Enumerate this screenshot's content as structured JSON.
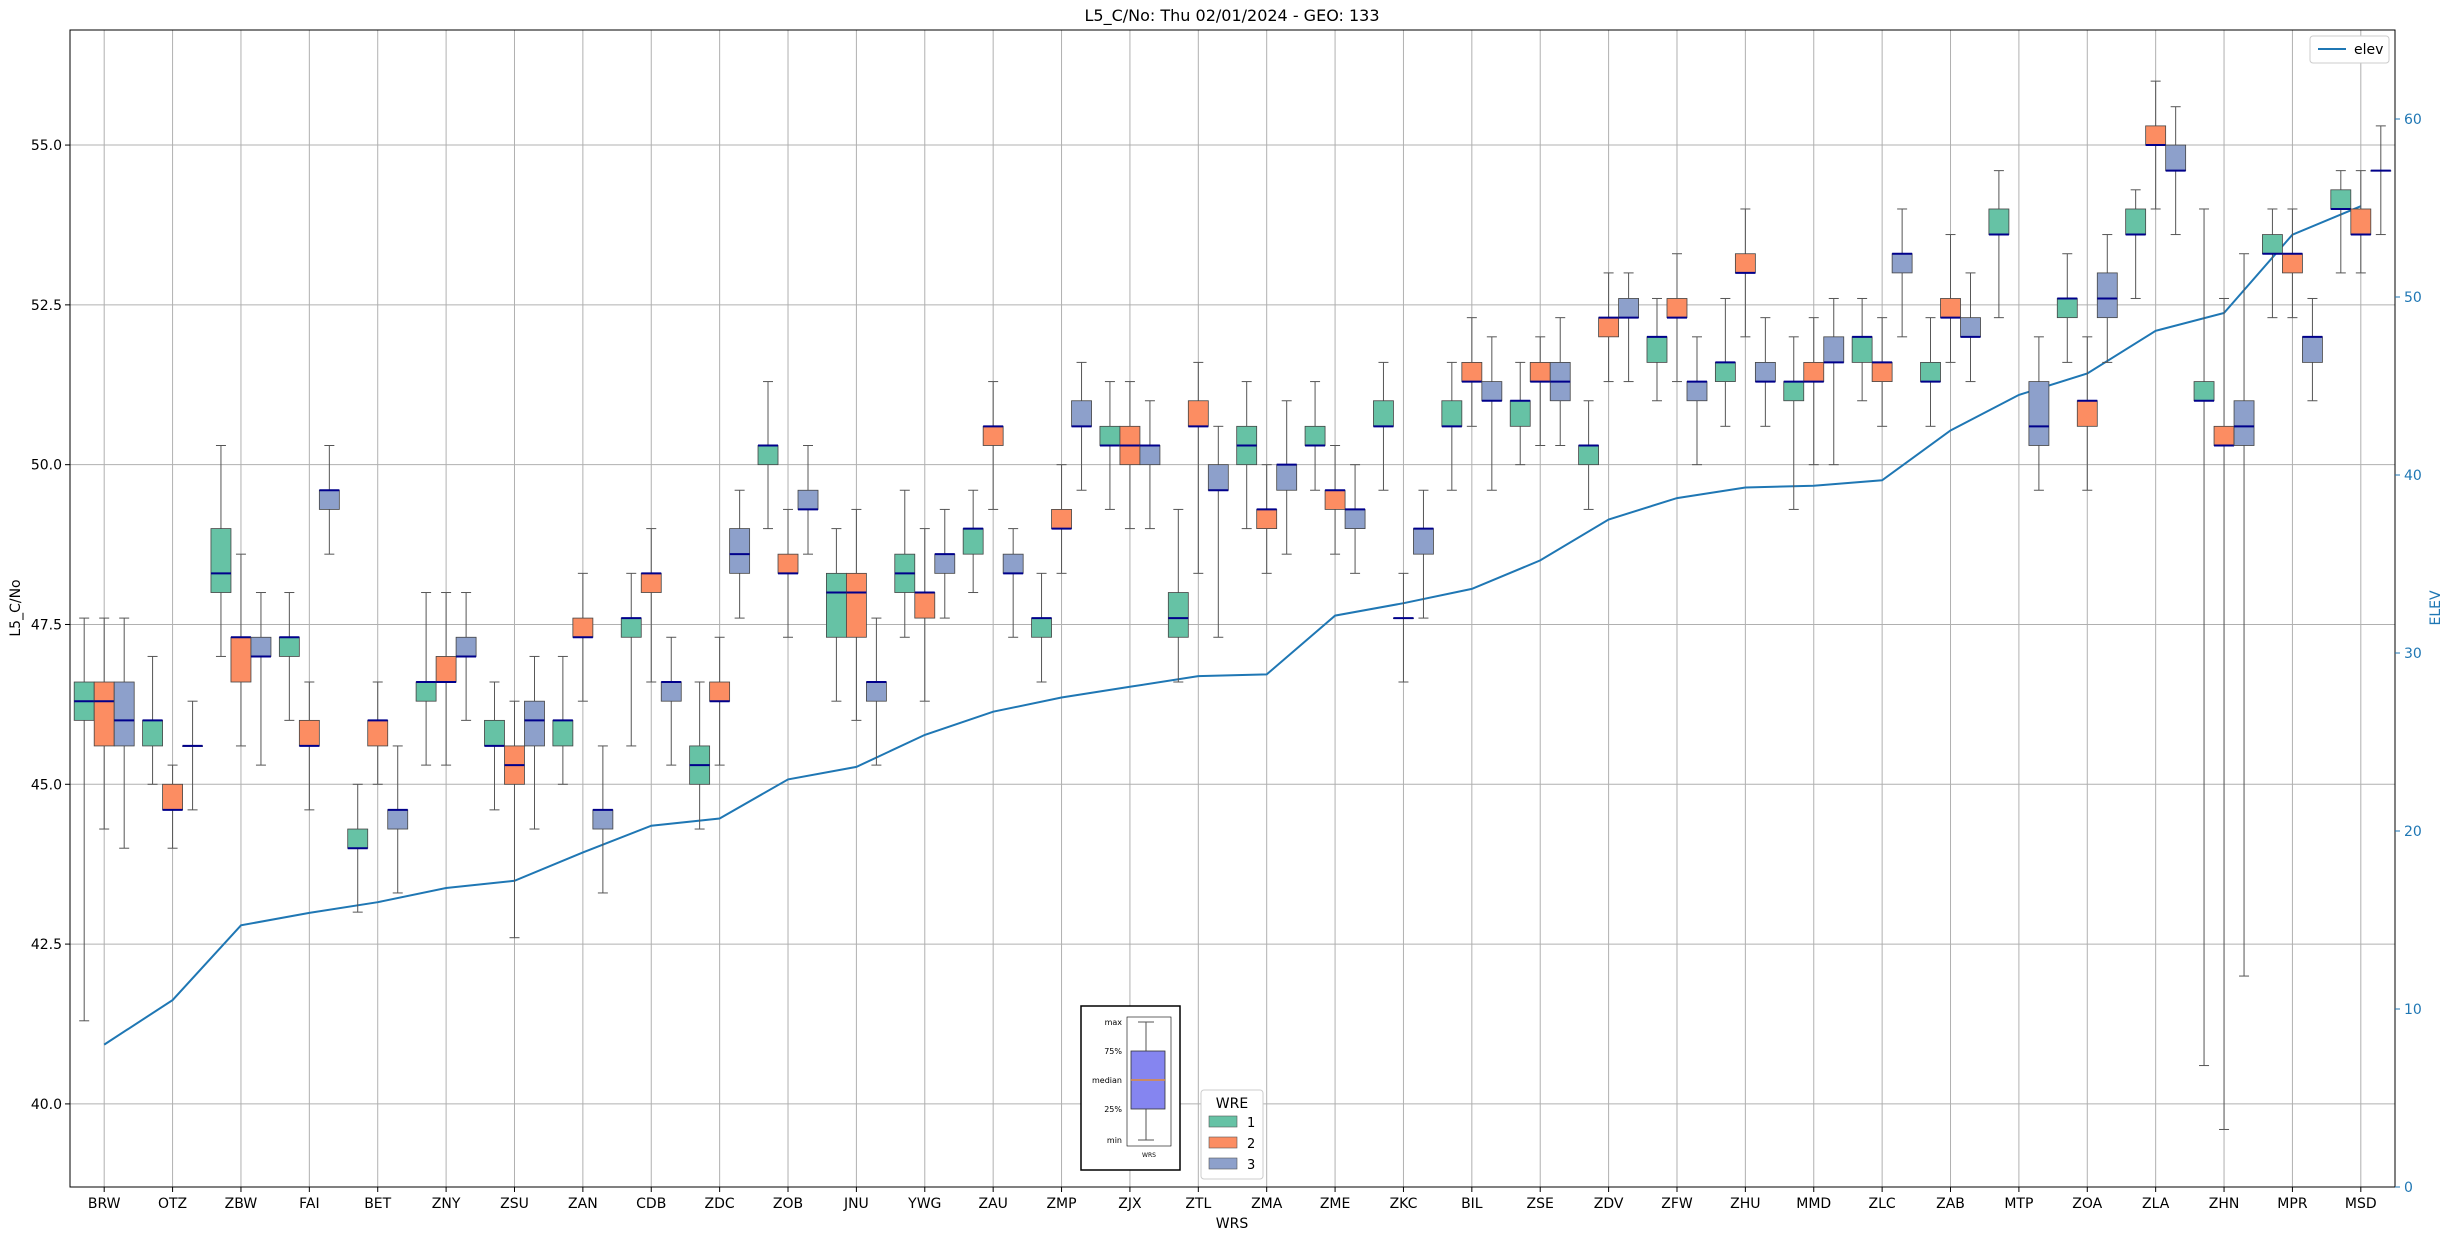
{
  "chart_data": {
    "type": "box",
    "title": "L5_C/No: Thu 02/01/2024 - GEO: 133",
    "xlabel": "WRS",
    "ylabel": "L5_C/No",
    "y2label": "ELEV",
    "ylim": [
      38.7,
      56.8
    ],
    "y2lim": [
      0,
      65
    ],
    "yticks": [
      "40.0",
      "42.5",
      "45.0",
      "47.5",
      "50.0",
      "52.5",
      "55.0"
    ],
    "y2ticks": [
      "0",
      "10",
      "20",
      "30",
      "40",
      "50",
      "60"
    ],
    "grid": true,
    "categories": [
      "BRW",
      "OTZ",
      "ZBW",
      "FAI",
      "BET",
      "ZNY",
      "ZSU",
      "ZAN",
      "CDB",
      "ZDC",
      "ZOB",
      "JNU",
      "YWG",
      "ZAU",
      "ZMP",
      "ZJX",
      "ZTL",
      "ZMA",
      "ZME",
      "ZKC",
      "BIL",
      "ZSE",
      "ZDV",
      "ZFW",
      "ZHU",
      "MMD",
      "ZLC",
      "ZAB",
      "MTP",
      "ZOA",
      "ZLA",
      "ZHN",
      "MPR",
      "MSD"
    ],
    "colors": {
      "1": "#66c2a5",
      "2": "#fc8d62",
      "3": "#8da0cb",
      "elev": "#1f77b4",
      "median": "#00008b"
    },
    "boxes": [
      {
        "cat": "BRW",
        "wre": "1",
        "min": 41.3,
        "q1": 46.0,
        "med": 46.3,
        "q3": 46.6,
        "max": 47.6
      },
      {
        "cat": "BRW",
        "wre": "2",
        "min": 44.3,
        "q1": 45.6,
        "med": 46.3,
        "q3": 46.6,
        "max": 47.6
      },
      {
        "cat": "BRW",
        "wre": "3",
        "min": 44.0,
        "q1": 45.6,
        "med": 46.0,
        "q3": 46.6,
        "max": 47.6
      },
      {
        "cat": "OTZ",
        "wre": "1",
        "min": 45.0,
        "q1": 45.6,
        "med": 46.0,
        "q3": 46.0,
        "max": 47.0
      },
      {
        "cat": "OTZ",
        "wre": "2",
        "min": 44.0,
        "q1": 44.6,
        "med": 44.6,
        "q3": 45.0,
        "max": 45.3
      },
      {
        "cat": "OTZ",
        "wre": "3",
        "min": 44.6,
        "q1": 45.6,
        "med": 45.6,
        "q3": 45.6,
        "max": 46.3
      },
      {
        "cat": "ZBW",
        "wre": "1",
        "min": 47.0,
        "q1": 48.0,
        "med": 48.3,
        "q3": 49.0,
        "max": 50.3
      },
      {
        "cat": "ZBW",
        "wre": "2",
        "min": 45.6,
        "q1": 46.6,
        "med": 47.3,
        "q3": 47.3,
        "max": 48.6
      },
      {
        "cat": "ZBW",
        "wre": "3",
        "min": 45.3,
        "q1": 47.0,
        "med": 47.0,
        "q3": 47.3,
        "max": 48.0
      },
      {
        "cat": "FAI",
        "wre": "1",
        "min": 46.0,
        "q1": 47.0,
        "med": 47.3,
        "q3": 47.3,
        "max": 48.0
      },
      {
        "cat": "FAI",
        "wre": "2",
        "min": 44.6,
        "q1": 45.6,
        "med": 45.6,
        "q3": 46.0,
        "max": 46.6
      },
      {
        "cat": "FAI",
        "wre": "3",
        "min": 48.6,
        "q1": 49.3,
        "med": 49.6,
        "q3": 49.6,
        "max": 50.3
      },
      {
        "cat": "BET",
        "wre": "1",
        "min": 43.0,
        "q1": 44.0,
        "med": 44.0,
        "q3": 44.3,
        "max": 45.0
      },
      {
        "cat": "BET",
        "wre": "2",
        "min": 45.0,
        "q1": 45.6,
        "med": 46.0,
        "q3": 46.0,
        "max": 46.6
      },
      {
        "cat": "BET",
        "wre": "3",
        "min": 43.3,
        "q1": 44.3,
        "med": 44.6,
        "q3": 44.6,
        "max": 45.6
      },
      {
        "cat": "ZNY",
        "wre": "1",
        "min": 45.3,
        "q1": 46.3,
        "med": 46.6,
        "q3": 46.6,
        "max": 48.0
      },
      {
        "cat": "ZNY",
        "wre": "2",
        "min": 45.3,
        "q1": 46.6,
        "med": 46.6,
        "q3": 47.0,
        "max": 48.0
      },
      {
        "cat": "ZNY",
        "wre": "3",
        "min": 46.0,
        "q1": 47.0,
        "med": 47.0,
        "q3": 47.3,
        "max": 48.0
      },
      {
        "cat": "ZSU",
        "wre": "1",
        "min": 44.6,
        "q1": 45.6,
        "med": 45.6,
        "q3": 46.0,
        "max": 46.6
      },
      {
        "cat": "ZSU",
        "wre": "2",
        "min": 42.6,
        "q1": 45.0,
        "med": 45.3,
        "q3": 45.6,
        "max": 46.3
      },
      {
        "cat": "ZSU",
        "wre": "3",
        "min": 44.3,
        "q1": 45.6,
        "med": 46.0,
        "q3": 46.3,
        "max": 47.0
      },
      {
        "cat": "ZAN",
        "wre": "1",
        "min": 45.0,
        "q1": 45.6,
        "med": 46.0,
        "q3": 46.0,
        "max": 47.0
      },
      {
        "cat": "ZAN",
        "wre": "2",
        "min": 46.3,
        "q1": 47.3,
        "med": 47.3,
        "q3": 47.6,
        "max": 48.3
      },
      {
        "cat": "ZAN",
        "wre": "3",
        "min": 43.3,
        "q1": 44.3,
        "med": 44.6,
        "q3": 44.6,
        "max": 45.6
      },
      {
        "cat": "CDB",
        "wre": "1",
        "min": 45.6,
        "q1": 47.3,
        "med": 47.6,
        "q3": 47.6,
        "max": 48.3
      },
      {
        "cat": "CDB",
        "wre": "2",
        "min": 46.6,
        "q1": 48.0,
        "med": 48.3,
        "q3": 48.3,
        "max": 49.0
      },
      {
        "cat": "CDB",
        "wre": "3",
        "min": 45.3,
        "q1": 46.3,
        "med": 46.6,
        "q3": 46.6,
        "max": 47.3
      },
      {
        "cat": "ZDC",
        "wre": "1",
        "min": 44.3,
        "q1": 45.0,
        "med": 45.3,
        "q3": 45.6,
        "max": 46.6
      },
      {
        "cat": "ZDC",
        "wre": "2",
        "min": 45.3,
        "q1": 46.3,
        "med": 46.3,
        "q3": 46.6,
        "max": 47.3
      },
      {
        "cat": "ZDC",
        "wre": "3",
        "min": 47.6,
        "q1": 48.3,
        "med": 48.6,
        "q3": 49.0,
        "max": 49.6
      },
      {
        "cat": "ZOB",
        "wre": "1",
        "min": 49.0,
        "q1": 50.0,
        "med": 50.3,
        "q3": 50.3,
        "max": 51.3
      },
      {
        "cat": "ZOB",
        "wre": "2",
        "min": 47.3,
        "q1": 48.3,
        "med": 48.3,
        "q3": 48.6,
        "max": 49.3
      },
      {
        "cat": "ZOB",
        "wre": "3",
        "min": 48.6,
        "q1": 49.3,
        "med": 49.3,
        "q3": 49.6,
        "max": 50.3
      },
      {
        "cat": "JNU",
        "wre": "1",
        "min": 46.3,
        "q1": 47.3,
        "med": 48.0,
        "q3": 48.3,
        "max": 49.0
      },
      {
        "cat": "JNU",
        "wre": "2",
        "min": 46.0,
        "q1": 47.3,
        "med": 48.0,
        "q3": 48.3,
        "max": 49.3
      },
      {
        "cat": "JNU",
        "wre": "3",
        "min": 45.3,
        "q1": 46.3,
        "med": 46.6,
        "q3": 46.6,
        "max": 47.6
      },
      {
        "cat": "YWG",
        "wre": "1",
        "min": 47.3,
        "q1": 48.0,
        "med": 48.3,
        "q3": 48.6,
        "max": 49.6
      },
      {
        "cat": "YWG",
        "wre": "2",
        "min": 46.3,
        "q1": 47.6,
        "med": 48.0,
        "q3": 48.0,
        "max": 49.0
      },
      {
        "cat": "YWG",
        "wre": "3",
        "min": 47.6,
        "q1": 48.3,
        "med": 48.6,
        "q3": 48.6,
        "max": 49.3
      },
      {
        "cat": "ZAU",
        "wre": "1",
        "min": 48.0,
        "q1": 48.6,
        "med": 49.0,
        "q3": 49.0,
        "max": 49.6
      },
      {
        "cat": "ZAU",
        "wre": "2",
        "min": 49.3,
        "q1": 50.3,
        "med": 50.6,
        "q3": 50.6,
        "max": 51.3
      },
      {
        "cat": "ZAU",
        "wre": "3",
        "min": 47.3,
        "q1": 48.3,
        "med": 48.3,
        "q3": 48.6,
        "max": 49.0
      },
      {
        "cat": "ZMP",
        "wre": "1",
        "min": 46.6,
        "q1": 47.3,
        "med": 47.6,
        "q3": 47.6,
        "max": 48.3
      },
      {
        "cat": "ZMP",
        "wre": "2",
        "min": 48.3,
        "q1": 49.0,
        "med": 49.0,
        "q3": 49.3,
        "max": 50.0
      },
      {
        "cat": "ZMP",
        "wre": "3",
        "min": 49.6,
        "q1": 50.6,
        "med": 50.6,
        "q3": 51.0,
        "max": 51.6
      },
      {
        "cat": "ZJX",
        "wre": "1",
        "min": 49.3,
        "q1": 50.3,
        "med": 50.3,
        "q3": 50.6,
        "max": 51.3
      },
      {
        "cat": "ZJX",
        "wre": "2",
        "min": 49.0,
        "q1": 50.0,
        "med": 50.3,
        "q3": 50.6,
        "max": 51.3
      },
      {
        "cat": "ZJX",
        "wre": "3",
        "min": 49.0,
        "q1": 50.0,
        "med": 50.3,
        "q3": 50.3,
        "max": 51.0
      },
      {
        "cat": "ZTL",
        "wre": "1",
        "min": 46.6,
        "q1": 47.3,
        "med": 47.6,
        "q3": 48.0,
        "max": 49.3
      },
      {
        "cat": "ZTL",
        "wre": "2",
        "min": 48.3,
        "q1": 50.6,
        "med": 50.6,
        "q3": 51.0,
        "max": 51.6
      },
      {
        "cat": "ZTL",
        "wre": "3",
        "min": 47.3,
        "q1": 49.6,
        "med": 49.6,
        "q3": 50.0,
        "max": 50.6
      },
      {
        "cat": "ZMA",
        "wre": "1",
        "min": 49.0,
        "q1": 50.0,
        "med": 50.3,
        "q3": 50.6,
        "max": 51.3
      },
      {
        "cat": "ZMA",
        "wre": "2",
        "min": 48.3,
        "q1": 49.0,
        "med": 49.3,
        "q3": 49.3,
        "max": 50.0
      },
      {
        "cat": "ZMA",
        "wre": "3",
        "min": 48.6,
        "q1": 49.6,
        "med": 50.0,
        "q3": 50.0,
        "max": 51.0
      },
      {
        "cat": "ZME",
        "wre": "1",
        "min": 49.6,
        "q1": 50.3,
        "med": 50.3,
        "q3": 50.6,
        "max": 51.3
      },
      {
        "cat": "ZME",
        "wre": "2",
        "min": 48.6,
        "q1": 49.3,
        "med": 49.6,
        "q3": 49.6,
        "max": 50.3
      },
      {
        "cat": "ZME",
        "wre": "3",
        "min": 48.3,
        "q1": 49.0,
        "med": 49.3,
        "q3": 49.3,
        "max": 50.0
      },
      {
        "cat": "ZKC",
        "wre": "1",
        "min": 49.6,
        "q1": 50.6,
        "med": 50.6,
        "q3": 51.0,
        "max": 51.6
      },
      {
        "cat": "ZKC",
        "wre": "2",
        "min": 46.6,
        "q1": 47.6,
        "med": 47.6,
        "q3": 47.6,
        "max": 48.3
      },
      {
        "cat": "ZKC",
        "wre": "3",
        "min": 47.6,
        "q1": 48.6,
        "med": 49.0,
        "q3": 49.0,
        "max": 49.6
      },
      {
        "cat": "BIL",
        "wre": "1",
        "min": 49.6,
        "q1": 50.6,
        "med": 50.6,
        "q3": 51.0,
        "max": 51.6
      },
      {
        "cat": "BIL",
        "wre": "2",
        "min": 50.6,
        "q1": 51.3,
        "med": 51.3,
        "q3": 51.6,
        "max": 52.3
      },
      {
        "cat": "BIL",
        "wre": "3",
        "min": 49.6,
        "q1": 51.0,
        "med": 51.0,
        "q3": 51.3,
        "max": 52.0
      },
      {
        "cat": "ZSE",
        "wre": "1",
        "min": 50.0,
        "q1": 50.6,
        "med": 51.0,
        "q3": 51.0,
        "max": 51.6
      },
      {
        "cat": "ZSE",
        "wre": "2",
        "min": 50.3,
        "q1": 51.3,
        "med": 51.3,
        "q3": 51.6,
        "max": 52.0
      },
      {
        "cat": "ZSE",
        "wre": "3",
        "min": 50.3,
        "q1": 51.0,
        "med": 51.3,
        "q3": 51.6,
        "max": 52.3
      },
      {
        "cat": "ZDV",
        "wre": "1",
        "min": 49.3,
        "q1": 50.0,
        "med": 50.3,
        "q3": 50.3,
        "max": 51.0
      },
      {
        "cat": "ZDV",
        "wre": "2",
        "min": 51.3,
        "q1": 52.0,
        "med": 52.3,
        "q3": 52.3,
        "max": 53.0
      },
      {
        "cat": "ZDV",
        "wre": "3",
        "min": 51.3,
        "q1": 52.3,
        "med": 52.3,
        "q3": 52.6,
        "max": 53.0
      },
      {
        "cat": "ZFW",
        "wre": "1",
        "min": 51.0,
        "q1": 51.6,
        "med": 52.0,
        "q3": 52.0,
        "max": 52.6
      },
      {
        "cat": "ZFW",
        "wre": "2",
        "min": 51.3,
        "q1": 52.3,
        "med": 52.3,
        "q3": 52.6,
        "max": 53.3
      },
      {
        "cat": "ZFW",
        "wre": "3",
        "min": 50.0,
        "q1": 51.0,
        "med": 51.3,
        "q3": 51.3,
        "max": 52.0
      },
      {
        "cat": "ZHU",
        "wre": "1",
        "min": 50.6,
        "q1": 51.3,
        "med": 51.6,
        "q3": 51.6,
        "max": 52.6
      },
      {
        "cat": "ZHU",
        "wre": "2",
        "min": 52.0,
        "q1": 53.0,
        "med": 53.0,
        "q3": 53.3,
        "max": 54.0
      },
      {
        "cat": "ZHU",
        "wre": "3",
        "min": 50.6,
        "q1": 51.3,
        "med": 51.3,
        "q3": 51.6,
        "max": 52.3
      },
      {
        "cat": "MMD",
        "wre": "1",
        "min": 49.3,
        "q1": 51.0,
        "med": 51.3,
        "q3": 51.3,
        "max": 52.0
      },
      {
        "cat": "MMD",
        "wre": "2",
        "min": 50.0,
        "q1": 51.3,
        "med": 51.3,
        "q3": 51.6,
        "max": 52.3
      },
      {
        "cat": "MMD",
        "wre": "3",
        "min": 50.0,
        "q1": 51.6,
        "med": 51.6,
        "q3": 52.0,
        "max": 52.6
      },
      {
        "cat": "ZLC",
        "wre": "1",
        "min": 51.0,
        "q1": 51.6,
        "med": 52.0,
        "q3": 52.0,
        "max": 52.6
      },
      {
        "cat": "ZLC",
        "wre": "2",
        "min": 50.6,
        "q1": 51.3,
        "med": 51.6,
        "q3": 51.6,
        "max": 52.3
      },
      {
        "cat": "ZLC",
        "wre": "3",
        "min": 52.0,
        "q1": 53.0,
        "med": 53.3,
        "q3": 53.3,
        "max": 54.0
      },
      {
        "cat": "ZAB",
        "wre": "1",
        "min": 50.6,
        "q1": 51.3,
        "med": 51.3,
        "q3": 51.6,
        "max": 52.3
      },
      {
        "cat": "ZAB",
        "wre": "2",
        "min": 51.6,
        "q1": 52.3,
        "med": 52.3,
        "q3": 52.6,
        "max": 53.6
      },
      {
        "cat": "ZAB",
        "wre": "3",
        "min": 51.3,
        "q1": 52.0,
        "med": 52.0,
        "q3": 52.3,
        "max": 53.0
      },
      {
        "cat": "MTP",
        "wre": "1",
        "min": 52.3,
        "q1": 53.6,
        "med": 53.6,
        "q3": 54.0,
        "max": 54.6
      },
      {
        "cat": "MTP",
        "wre": "2",
        "min": null,
        "q1": null,
        "med": null,
        "q3": null,
        "max": null
      },
      {
        "cat": "MTP",
        "wre": "3",
        "min": 49.6,
        "q1": 50.3,
        "med": 50.6,
        "q3": 51.3,
        "max": 52.0
      },
      {
        "cat": "ZOA",
        "wre": "1",
        "min": 51.6,
        "q1": 52.3,
        "med": 52.6,
        "q3": 52.6,
        "max": 53.3
      },
      {
        "cat": "ZOA",
        "wre": "2",
        "min": 49.6,
        "q1": 50.6,
        "med": 51.0,
        "q3": 51.0,
        "max": 52.0
      },
      {
        "cat": "ZOA",
        "wre": "3",
        "min": 51.6,
        "q1": 52.3,
        "med": 52.6,
        "q3": 53.0,
        "max": 53.6
      },
      {
        "cat": "ZLA",
        "wre": "1",
        "min": 52.6,
        "q1": 53.6,
        "med": 53.6,
        "q3": 54.0,
        "max": 54.3
      },
      {
        "cat": "ZLA",
        "wre": "2",
        "min": 54.0,
        "q1": 55.0,
        "med": 55.0,
        "q3": 55.3,
        "max": 56.0
      },
      {
        "cat": "ZLA",
        "wre": "3",
        "min": 53.6,
        "q1": 54.6,
        "med": 54.6,
        "q3": 55.0,
        "max": 55.6
      },
      {
        "cat": "ZHN",
        "wre": "1",
        "min": 40.6,
        "q1": 51.0,
        "med": 51.0,
        "q3": 51.3,
        "max": 54.0
      },
      {
        "cat": "ZHN",
        "wre": "2",
        "min": 39.6,
        "q1": 50.3,
        "med": 50.3,
        "q3": 50.6,
        "max": 52.6
      },
      {
        "cat": "ZHN",
        "wre": "3",
        "min": 42.0,
        "q1": 50.3,
        "med": 50.6,
        "q3": 51.0,
        "max": 53.3
      },
      {
        "cat": "MPR",
        "wre": "1",
        "min": 52.3,
        "q1": 53.3,
        "med": 53.3,
        "q3": 53.6,
        "max": 54.0
      },
      {
        "cat": "MPR",
        "wre": "2",
        "min": 52.3,
        "q1": 53.0,
        "med": 53.3,
        "q3": 53.3,
        "max": 54.0
      },
      {
        "cat": "MPR",
        "wre": "3",
        "min": 51.0,
        "q1": 51.6,
        "med": 52.0,
        "q3": 52.0,
        "max": 52.6
      },
      {
        "cat": "MSD",
        "wre": "1",
        "min": 53.0,
        "q1": 54.0,
        "med": 54.0,
        "q3": 54.3,
        "max": 54.6
      },
      {
        "cat": "MSD",
        "wre": "2",
        "min": 53.0,
        "q1": 53.6,
        "med": 53.6,
        "q3": 54.0,
        "max": 54.6
      },
      {
        "cat": "MSD",
        "wre": "3",
        "min": 53.6,
        "q1": 54.6,
        "med": 54.6,
        "q3": 54.6,
        "max": 55.3
      }
    ],
    "elev_series": {
      "name": "elev",
      "values": [
        8,
        10.5,
        14.7,
        15.4,
        16,
        16.8,
        17.2,
        18.8,
        20.3,
        20.7,
        22.9,
        23.6,
        25.4,
        26.7,
        27.5,
        28.1,
        28.7,
        28.8,
        32.1,
        32.8,
        33.6,
        35.2,
        37.5,
        38.7,
        39.3,
        39.4,
        39.7,
        42.5,
        44.5,
        45.7,
        48.1,
        49.1,
        53.5,
        55.1
      ]
    },
    "legend": {
      "title": "WRE",
      "entries": [
        "1",
        "2",
        "3"
      ],
      "line_entry": "elev"
    },
    "key_box_labels": [
      "max",
      "75%",
      "median",
      "25%",
      "min",
      "WRS"
    ]
  }
}
